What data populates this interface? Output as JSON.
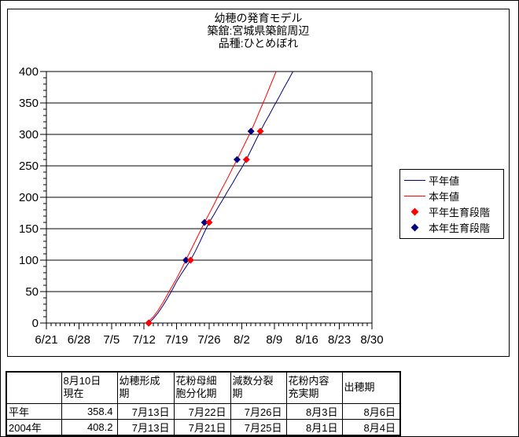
{
  "chart": {
    "title_lines": [
      "幼穂の発育モデル",
      "築舘:宮城県築館周辺",
      "品種:ひとめぼれ"
    ]
  },
  "chart_data": {
    "type": "line",
    "title": "幼穂の発育モデル 築舘:宮城県築館周辺 品種:ひとめぼれ",
    "x_axis": {
      "tick_labels": [
        "6/21",
        "6/28",
        "7/5",
        "7/12",
        "7/19",
        "7/26",
        "8/2",
        "8/9",
        "8/16",
        "8/23",
        "8/30"
      ],
      "days_per_major_tick": 7,
      "minor_tick_every_days": 1,
      "range_days": [
        0,
        70
      ]
    },
    "y_axis": {
      "min": 0,
      "max": 400,
      "major_step": 50,
      "minor_step": 10
    },
    "grid": "horizontal-major",
    "legend_position": "right",
    "series": [
      {
        "key": "heinen-line",
        "name": "平年値",
        "type": "line",
        "color": "#000080",
        "points": [
          [
            22,
            0
          ],
          [
            23,
            7
          ],
          [
            24,
            16
          ],
          [
            25,
            27
          ],
          [
            26,
            39
          ],
          [
            27,
            52
          ],
          [
            28,
            66
          ],
          [
            29,
            78
          ],
          [
            30,
            89
          ],
          [
            31,
            100
          ],
          [
            32,
            114
          ],
          [
            33,
            129
          ],
          [
            34,
            145
          ],
          [
            35,
            160
          ],
          [
            36,
            172
          ],
          [
            37,
            185
          ],
          [
            38,
            197
          ],
          [
            39,
            210
          ],
          [
            40,
            222
          ],
          [
            41,
            235
          ],
          [
            42,
            247
          ],
          [
            43,
            260
          ],
          [
            44,
            275
          ],
          [
            45,
            290
          ],
          [
            46,
            305
          ],
          [
            47,
            319
          ],
          [
            48,
            332
          ],
          [
            49,
            346
          ],
          [
            50,
            359
          ],
          [
            51,
            373
          ],
          [
            52,
            386
          ],
          [
            53,
            400
          ]
        ]
      },
      {
        "key": "honnen-line",
        "name": "本年値",
        "type": "line",
        "color": "#FF0000",
        "points": [
          [
            21.7,
            0
          ],
          [
            22,
            3
          ],
          [
            23,
            10
          ],
          [
            24,
            20
          ],
          [
            25,
            32
          ],
          [
            26,
            45
          ],
          [
            27,
            58
          ],
          [
            28,
            71
          ],
          [
            29,
            85
          ],
          [
            30,
            100
          ],
          [
            31,
            115
          ],
          [
            32,
            130
          ],
          [
            33,
            145
          ],
          [
            34,
            160
          ],
          [
            35,
            174
          ],
          [
            36,
            188
          ],
          [
            37,
            203
          ],
          [
            38,
            217
          ],
          [
            39,
            231
          ],
          [
            40,
            246
          ],
          [
            41,
            260
          ],
          [
            42,
            275
          ],
          [
            43,
            290
          ],
          [
            44,
            305
          ],
          [
            45,
            322
          ],
          [
            46,
            340
          ],
          [
            47,
            357
          ],
          [
            48,
            375
          ],
          [
            49,
            393
          ],
          [
            49.4,
            400
          ]
        ]
      },
      {
        "key": "honnen-stage-markers",
        "name": "本年生育段階",
        "type": "scatter",
        "color": "#000080",
        "point_dates": [
          "7/13",
          "7/21",
          "7/25",
          "8/1",
          "8/4"
        ],
        "points": [
          [
            22,
            0
          ],
          [
            30,
            100
          ],
          [
            34,
            160
          ],
          [
            41,
            260
          ],
          [
            44,
            305
          ]
        ]
      },
      {
        "key": "heinen-stage-markers",
        "name": "平年生育段階",
        "type": "scatter",
        "color": "#FF0000",
        "point_dates": [
          "7/13",
          "7/22",
          "7/26",
          "8/3",
          "8/6"
        ],
        "points": [
          [
            22,
            0
          ],
          [
            31,
            100
          ],
          [
            35,
            160
          ],
          [
            43,
            260
          ],
          [
            46,
            305
          ]
        ]
      }
    ]
  },
  "legend": {
    "items": [
      {
        "label": "平年値",
        "swatch": "line",
        "color": "#000080"
      },
      {
        "label": "本年値",
        "swatch": "line",
        "color": "#FF0000"
      },
      {
        "label": "平年生育段階",
        "swatch": "diamond",
        "color": "#FF0000"
      },
      {
        "label": "本年生育段階",
        "swatch": "diamond",
        "color": "#000080"
      }
    ]
  },
  "table": {
    "headers": [
      "",
      "8月10日\n現在",
      "幼穂形成\n期",
      "花粉母細\n胞分化期",
      "減数分裂\n期",
      "花粉内容\n充実期",
      "出穂期"
    ],
    "rows": [
      {
        "label": "平年",
        "cells": [
          "358.4",
          "7月13日",
          "7月22日",
          "7月26日",
          "8月3日",
          "8月6日"
        ]
      },
      {
        "label": "2004年",
        "cells": [
          "408.2",
          "7月13日",
          "7月21日",
          "7月25日",
          "8月1日",
          "8月4日"
        ]
      }
    ]
  },
  "colors": {
    "normal_year": "#000080",
    "this_year": "#FF0000",
    "axis": "#000000",
    "background": "#FFFFFF"
  }
}
